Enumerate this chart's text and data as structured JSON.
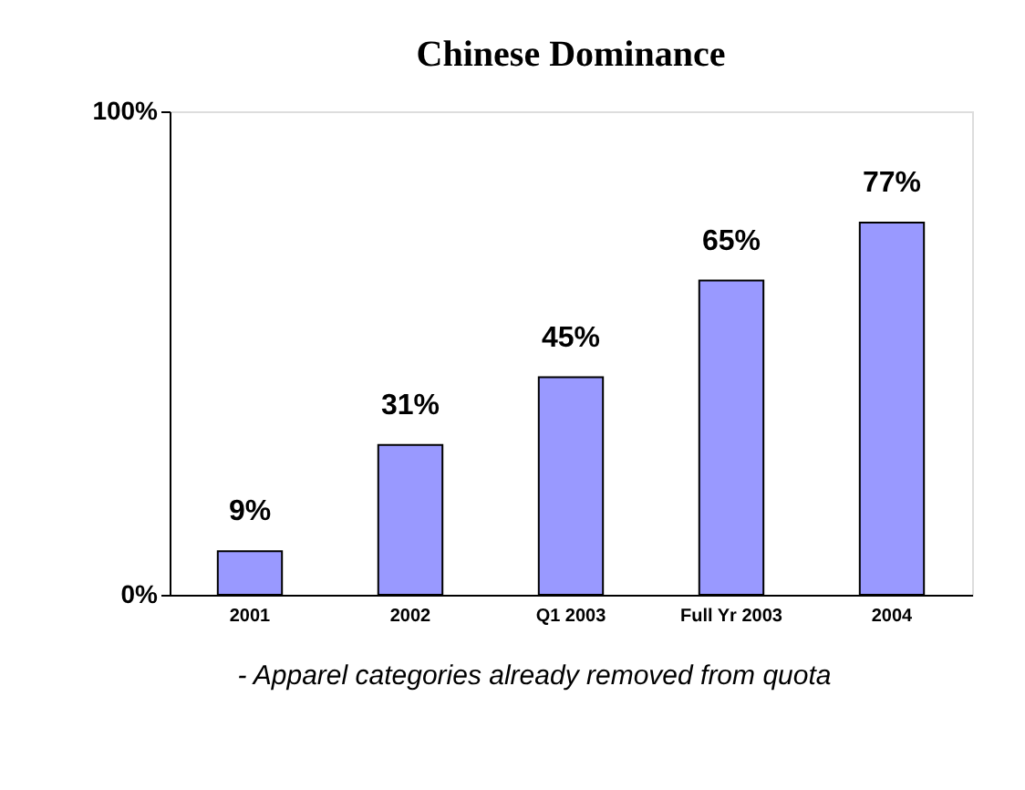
{
  "chart_data": {
    "type": "bar",
    "title": "Chinese Dominance",
    "categories": [
      "2001",
      "2002",
      "Q1 2003",
      "Full Yr 2003",
      "2004"
    ],
    "values": [
      9,
      31,
      45,
      65,
      77
    ],
    "value_labels": [
      "9%",
      "31%",
      "45%",
      "65%",
      "77%"
    ],
    "color": "#9999ff",
    "ylim": [
      0,
      100
    ],
    "yticks": [
      {
        "value": 0,
        "label": "0%"
      },
      {
        "value": 100,
        "label": "100%"
      }
    ],
    "grid": false,
    "annotations": [
      "- Apparel categories already removed from quota"
    ]
  }
}
